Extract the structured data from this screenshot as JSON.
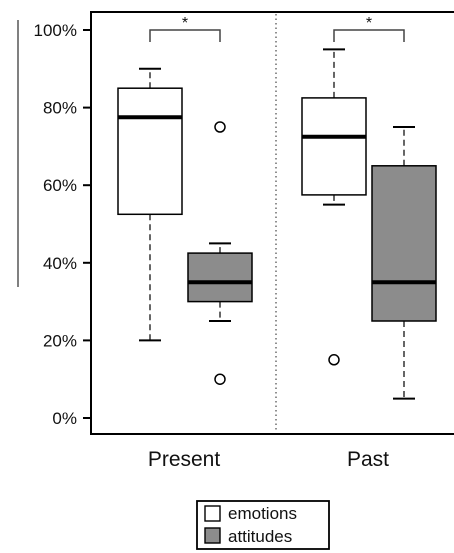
{
  "chart_data": {
    "type": "boxplot",
    "categories": [
      "Present",
      "Past"
    ],
    "y_ticks": [
      "0%",
      "20%",
      "40%",
      "60%",
      "80%",
      "100%"
    ],
    "ylim": [
      0,
      100
    ],
    "series": [
      {
        "name": "emotions",
        "color": "#ffffff",
        "boxes": [
          {
            "whisker_low": 20,
            "q1": 52.5,
            "median": 77.5,
            "q3": 85,
            "whisker_high": 90,
            "outliers": []
          },
          {
            "whisker_low": 55,
            "q1": 57.5,
            "median": 72.5,
            "q3": 82.5,
            "whisker_high": 95,
            "outliers": [
              15
            ]
          }
        ]
      },
      {
        "name": "attitudes",
        "color": "#8c8c8c",
        "boxes": [
          {
            "whisker_low": 25,
            "q1": 30,
            "median": 35,
            "q3": 42.5,
            "whisker_high": 45,
            "outliers": [
              75,
              10
            ]
          },
          {
            "whisker_low": 5,
            "q1": 25,
            "median": 35,
            "q3": 65,
            "whisker_high": 75,
            "outliers": []
          }
        ]
      }
    ],
    "significance": [
      "*",
      "*"
    ],
    "legend": [
      "emotions",
      "attitudes"
    ],
    "legend_position": "bottom"
  }
}
